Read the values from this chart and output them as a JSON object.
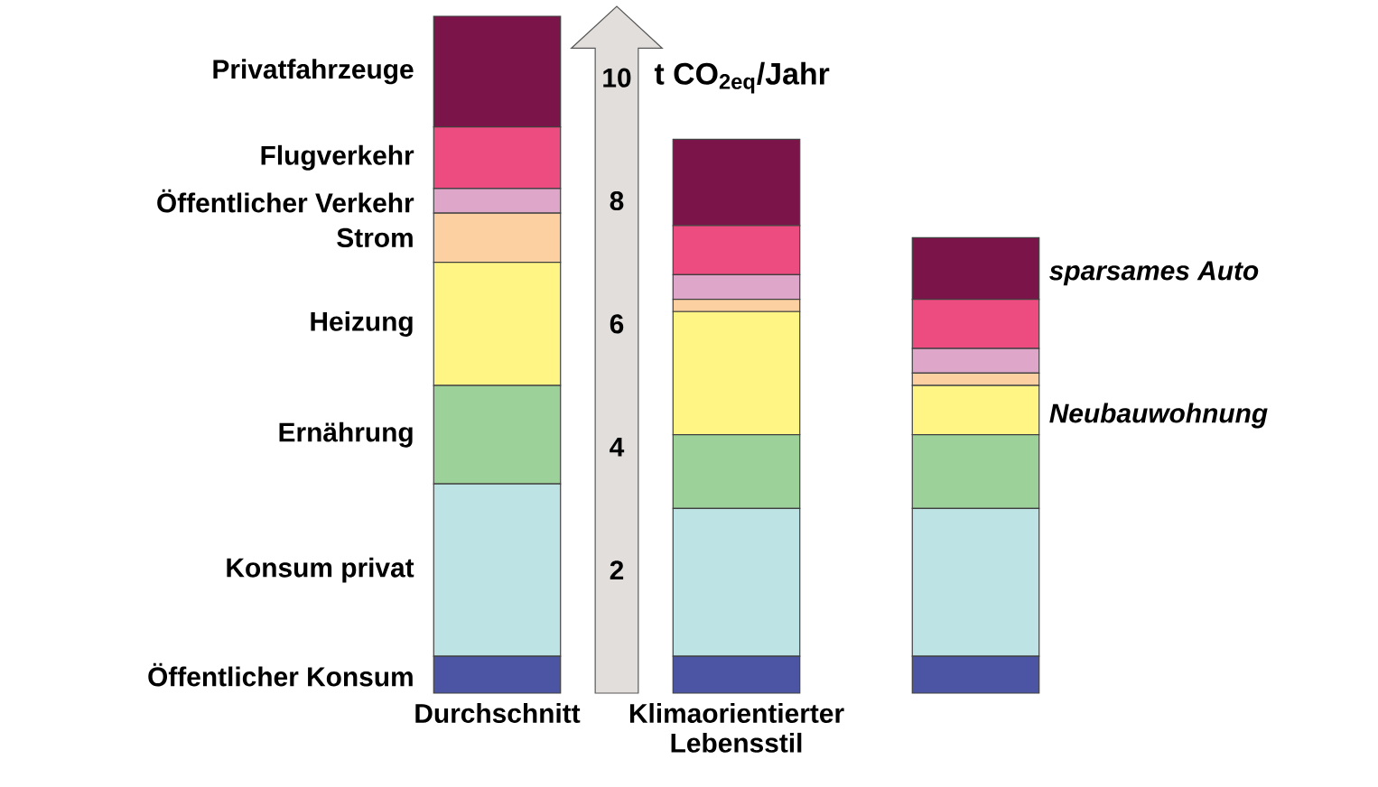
{
  "chart_data": {
    "type": "bar",
    "stacked": true,
    "categories": [
      "Durchschnitt",
      "Klimaorientierter Lebensstil",
      null
    ],
    "ylabel": "t CO$_{2eq}$/Jahr",
    "ylim": [
      0,
      11
    ],
    "yticks": [
      2,
      4,
      6,
      8,
      10
    ],
    "series": [
      {
        "name": "Öffentlicher Konsum",
        "color": "#4b55a3",
        "values": [
          0.6,
          0.6,
          0.6
        ]
      },
      {
        "name": "Konsum privat",
        "color": "#bde3e5",
        "values": [
          2.8,
          2.4,
          2.4
        ]
      },
      {
        "name": "Ernährung",
        "color": "#9dd19a",
        "values": [
          1.6,
          1.2,
          1.2
        ]
      },
      {
        "name": "Heizung",
        "color": "#fff584",
        "values": [
          2.0,
          2.0,
          0.8
        ]
      },
      {
        "name": "Strom",
        "color": "#fdd0a2",
        "values": [
          0.8,
          0.2,
          0.2
        ]
      },
      {
        "name": "Öffentlicher Verkehr",
        "color": "#dea6c9",
        "values": [
          0.4,
          0.4,
          0.4
        ]
      },
      {
        "name": "Flugverkehr",
        "color": "#ec4c80",
        "values": [
          1.0,
          0.8,
          0.8
        ]
      },
      {
        "name": "Privatfahrzeuge",
        "color": "#7b1449",
        "values": [
          1.8,
          1.4,
          1.0
        ]
      }
    ],
    "annotations": [
      "*sparsames Auto*",
      "*Neubauwohnung*"
    ]
  }
}
